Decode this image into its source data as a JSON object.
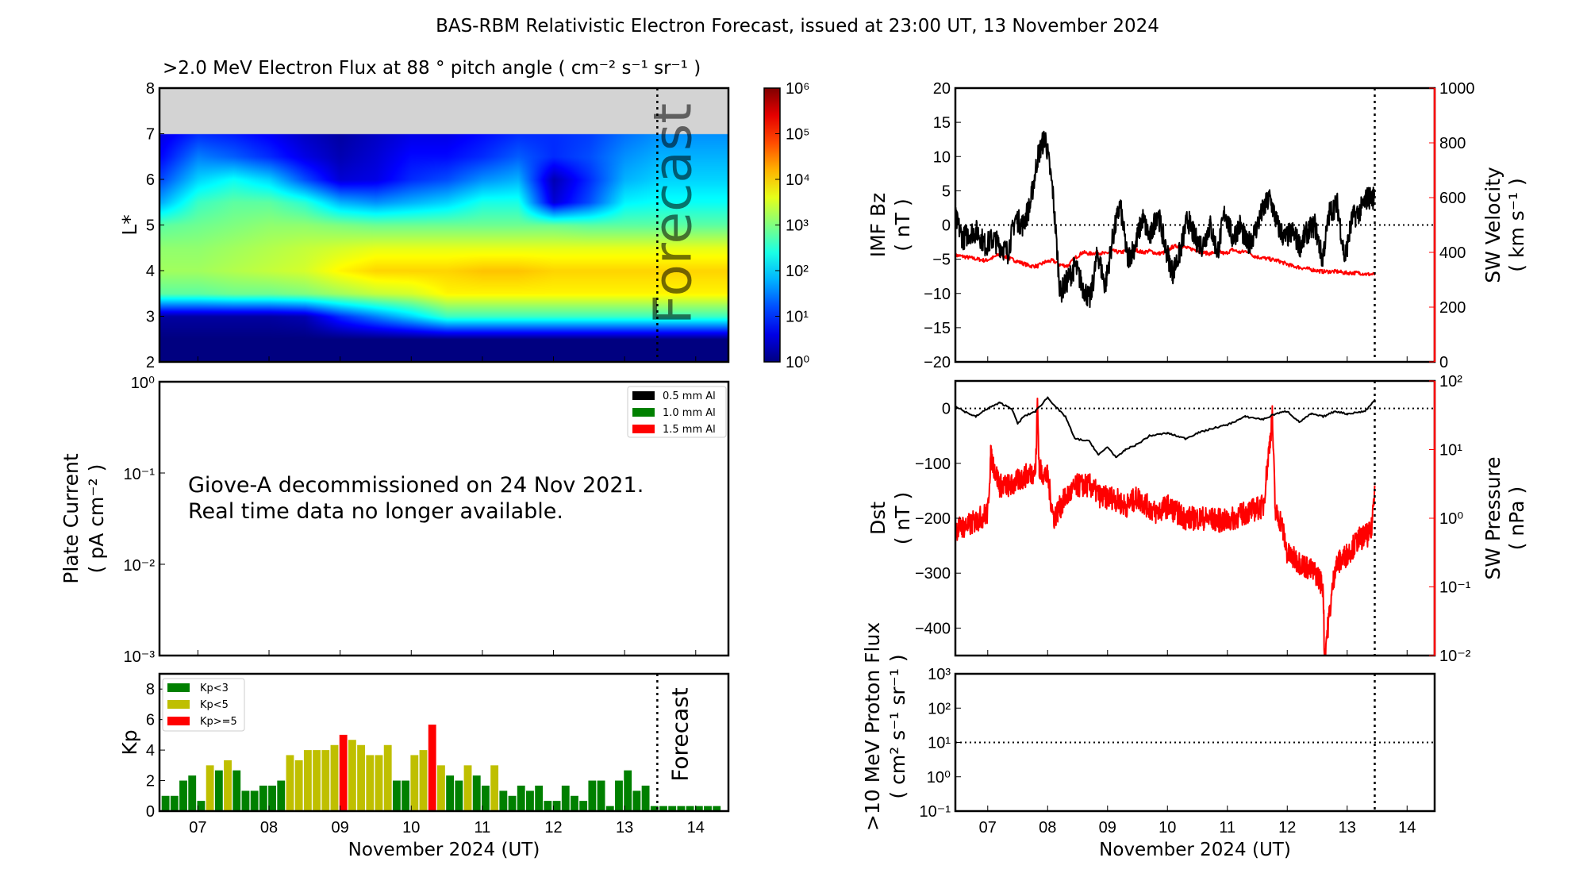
{
  "title": "BAS-RBM Relativistic Electron Forecast, issued at 23:00 UT, 13 November 2024",
  "xaxis": {
    "label": "November 2024 (UT)",
    "xlim": [
      6.46,
      14.46
    ],
    "ticks": [
      7,
      8,
      9,
      10,
      11,
      12,
      13,
      14
    ],
    "tick_labels": [
      "07",
      "08",
      "09",
      "10",
      "11",
      "12",
      "13",
      "14"
    ],
    "forecast_start": 13.46
  },
  "chart_data": [
    {
      "id": "electron-flux",
      "type": "heatmap",
      "title": ">2.0 MeV Electron Flux at 88 ° pitch angle ( cm⁻² s⁻¹ sr⁻¹ )",
      "ylabel": "L*",
      "ylim": [
        2,
        8
      ],
      "yticks": [
        "2",
        "3",
        "4",
        "5",
        "6",
        "7",
        "8"
      ],
      "no_data_color": "#d3d3d3",
      "no_data_above_L": 7,
      "forecast_text": "Forecast",
      "colormap": "jet",
      "colorbar": {
        "log10_range": [
          0,
          6
        ],
        "tick_labels": [
          "10⁰",
          "10¹",
          "10²",
          "10³",
          "10⁴",
          "10⁵",
          "10⁶"
        ]
      },
      "time": [
        6.5,
        7,
        7.5,
        8,
        8.5,
        9,
        9.5,
        10,
        10.5,
        11,
        11.5,
        12,
        12.5,
        13,
        13.5,
        14,
        14.5
      ],
      "L": [
        2,
        2.5,
        3,
        3.5,
        4,
        4.5,
        5,
        5.5,
        6,
        6.5,
        7
      ],
      "log10_flux": [
        [
          0,
          0,
          0,
          0,
          0,
          0,
          0,
          0,
          0,
          0,
          0,
          0,
          0,
          0,
          0,
          0,
          0
        ],
        [
          0,
          0,
          0,
          0,
          0,
          0,
          0,
          0,
          0,
          0,
          0,
          0,
          0,
          0,
          0,
          0,
          0
        ],
        [
          0.2,
          0.2,
          0.2,
          0.2,
          0.3,
          1.0,
          1.5,
          2.0,
          2.6,
          2.6,
          2.6,
          2.6,
          2.6,
          2.6,
          2.6,
          2.6,
          2.6
        ],
        [
          2.8,
          2.8,
          2.9,
          2.9,
          3.0,
          3.2,
          3.4,
          3.5,
          3.8,
          3.8,
          3.8,
          3.8,
          3.8,
          3.8,
          3.8,
          3.8,
          3.8
        ],
        [
          3.2,
          3.2,
          3.3,
          3.4,
          3.5,
          3.8,
          4.0,
          4.0,
          4.0,
          4.1,
          4.1,
          4.0,
          4.0,
          4.0,
          4.0,
          4.0,
          4.0
        ],
        [
          3.1,
          3.1,
          3.2,
          3.3,
          3.4,
          3.5,
          3.6,
          3.6,
          3.6,
          3.6,
          3.6,
          3.6,
          3.6,
          3.6,
          3.6,
          3.6,
          3.6
        ],
        [
          2.8,
          2.9,
          3.0,
          3.1,
          3.1,
          3.0,
          2.9,
          2.9,
          2.9,
          2.9,
          2.9,
          2.9,
          2.8,
          2.8,
          2.8,
          2.8,
          2.8
        ],
        [
          1.8,
          2.6,
          2.8,
          2.8,
          2.5,
          1.8,
          1.6,
          1.8,
          2.0,
          2.4,
          2.4,
          0.5,
          1.2,
          2.2,
          2.3,
          2.3,
          2.3
        ],
        [
          1.2,
          2.0,
          2.3,
          2.0,
          1.2,
          0.5,
          0.6,
          1.0,
          1.2,
          1.6,
          1.8,
          0.3,
          1.0,
          1.8,
          2.0,
          2.0,
          2.0
        ],
        [
          0.8,
          1.5,
          1.3,
          1.0,
          0.6,
          0.3,
          0.5,
          0.8,
          0.8,
          1.0,
          1.3,
          1.0,
          1.2,
          1.6,
          1.8,
          1.8,
          1.8
        ],
        [
          0.6,
          1.0,
          0.9,
          0.7,
          0.4,
          0.2,
          0.4,
          0.6,
          0.6,
          0.8,
          1.0,
          1.0,
          1.1,
          1.4,
          1.6,
          1.6,
          1.6
        ]
      ]
    },
    {
      "id": "plate-current",
      "type": "line",
      "ylabel": "Plate Current",
      "ylabel_units": "( pA cm⁻² )",
      "yscale": "log",
      "ylim": [
        0.001,
        1
      ],
      "yticks": [
        "10⁻³",
        "10⁻²",
        "10⁻¹",
        "10⁰"
      ],
      "legend": [
        {
          "label": "0.5 mm Al",
          "color": "#000000"
        },
        {
          "label": "1.0 mm Al",
          "color": "#008000"
        },
        {
          "label": "1.5 mm Al",
          "color": "#ff0000"
        }
      ],
      "legend_position": "top-right",
      "message": [
        "Giove-A decommissioned on 24 Nov 2021.",
        "Real time data no longer available."
      ],
      "series": []
    },
    {
      "id": "kp",
      "type": "bar",
      "ylabel": "Kp",
      "ylim": [
        0,
        9
      ],
      "yticks": [
        "0",
        "2",
        "4",
        "6",
        "8"
      ],
      "forecast_text": "Forecast",
      "legend": [
        {
          "label": "Kp<3",
          "color": "#008000"
        },
        {
          "label": "Kp<5",
          "color": "#bfbf00"
        },
        {
          "label": "Kp>=5",
          "color": "#ff0000"
        }
      ],
      "legend_position": "top-left",
      "observed": [
        1,
        1,
        2,
        2.33,
        0.67,
        3,
        2.67,
        3.33,
        2.67,
        1.33,
        1.33,
        1.67,
        1.67,
        2,
        3.67,
        3.33,
        4,
        4,
        4,
        4.33,
        5,
        4.67,
        4.33,
        3.67,
        3.67,
        4.33,
        2,
        2,
        3.67,
        4,
        5.67,
        3,
        2.33,
        2,
        3,
        2.33,
        1.67,
        3,
        1.33,
        1,
        1.67,
        1.33,
        1.67,
        0.67,
        0.67,
        1.67,
        1,
        0.67,
        2,
        2,
        0.33,
        2,
        2.67,
        1.33,
        1.67
      ],
      "forecast": [
        0.33,
        0.33,
        0.33,
        0.33,
        0.33,
        0.33,
        0.33,
        0.33
      ]
    },
    {
      "id": "imf-sw-velocity",
      "type": "line",
      "ylabel": "IMF Bz",
      "ylabel_units": "( nT )",
      "ylim": [
        -20,
        20
      ],
      "yticks": [
        "−20",
        "−15",
        "−10",
        "−5",
        "0",
        "5",
        "10",
        "15",
        "20"
      ],
      "y2label": "SW Velocity",
      "y2label_units": "( km s⁻¹ )",
      "y2lim": [
        0,
        1000
      ],
      "y2ticks": [
        "0",
        "200",
        "400",
        "600",
        "800",
        "1000"
      ],
      "x": [
        6.46,
        6.585,
        6.71,
        6.835,
        6.96,
        7.085,
        7.21,
        7.335,
        7.46,
        7.585,
        7.71,
        7.835,
        7.96,
        8.085,
        8.21,
        8.335,
        8.46,
        8.585,
        8.71,
        8.835,
        8.96,
        9.085,
        9.21,
        9.335,
        9.46,
        9.585,
        9.71,
        9.835,
        9.96,
        10.085,
        10.21,
        10.335,
        10.46,
        10.585,
        10.71,
        10.835,
        10.96,
        11.085,
        11.21,
        11.335,
        11.46,
        11.585,
        11.71,
        11.835,
        11.96,
        12.085,
        12.21,
        12.335,
        12.46,
        12.585,
        12.71,
        12.835,
        12.96,
        13.085,
        13.21,
        13.335,
        13.46
      ],
      "bz": [
        1,
        -2,
        -1,
        -1,
        -3,
        -2,
        -3,
        -4,
        1,
        0,
        3,
        10,
        13,
        5,
        -10,
        -8,
        -6,
        -9,
        -11,
        -4,
        -9,
        -2,
        3,
        -5,
        -3,
        1,
        -2,
        2,
        -3,
        -7,
        -4,
        1,
        -2,
        -3,
        0,
        -4,
        2,
        -2,
        0,
        -3,
        -1,
        2,
        4,
        0,
        -2,
        -1,
        -3,
        -1,
        0,
        -5,
        2,
        3,
        -5,
        1,
        2,
        4,
        4
      ],
      "velocity": [
        390,
        385,
        380,
        375,
        370,
        380,
        395,
        380,
        370,
        360,
        350,
        350,
        365,
        370,
        355,
        350,
        380,
        400,
        395,
        400,
        395,
        405,
        400,
        405,
        410,
        400,
        405,
        395,
        400,
        420,
        425,
        415,
        410,
        400,
        395,
        405,
        395,
        410,
        400,
        405,
        385,
        380,
        375,
        370,
        360,
        350,
        345,
        340,
        335,
        330,
        330,
        330,
        325,
        325,
        325,
        320,
        320
      ],
      "bz_color": "#000000",
      "velocity_color": "#ff0000"
    },
    {
      "id": "dst-sw-pressure",
      "type": "line",
      "ylabel": "Dst",
      "ylabel_units": "( nT )",
      "ylim": [
        -450,
        50
      ],
      "yticks": [
        "−400",
        "−300",
        "−200",
        "−100",
        "0"
      ],
      "y2label": "SW Pressure",
      "y2label_units": "( nPa )",
      "y2scale": "log",
      "y2lim": [
        0.01,
        100
      ],
      "y2ticks": [
        "10⁻²",
        "10⁻¹",
        "10⁰",
        "10¹",
        "10²"
      ],
      "dst_x": [
        6.46,
        6.6,
        6.8,
        7.0,
        7.2,
        7.4,
        7.5,
        7.6,
        7.8,
        8.0,
        8.2,
        8.3,
        8.45,
        8.7,
        8.85,
        9.0,
        9.15,
        9.3,
        9.5,
        9.7,
        10.0,
        10.3,
        10.5,
        10.8,
        11.0,
        11.3,
        11.6,
        11.8,
        12.0,
        12.2,
        12.4,
        12.6,
        12.8,
        13.0,
        13.3,
        13.46
      ],
      "dst": [
        5,
        -5,
        -15,
        0,
        10,
        0,
        -28,
        -15,
        -5,
        20,
        -5,
        -15,
        -55,
        -60,
        -85,
        -70,
        -90,
        -75,
        -65,
        -50,
        -45,
        -55,
        -45,
        -35,
        -30,
        -15,
        -20,
        -10,
        -5,
        -25,
        -10,
        -15,
        -5,
        -10,
        -5,
        15
      ],
      "pressure_x": [
        6.46,
        6.7,
        7.0,
        7.05,
        7.2,
        7.4,
        7.6,
        7.8,
        7.83,
        7.86,
        8.0,
        8.1,
        8.3,
        8.5,
        8.7,
        8.9,
        9.1,
        9.3,
        9.5,
        9.8,
        10.0,
        10.3,
        10.6,
        11.0,
        11.3,
        11.6,
        11.75,
        11.8,
        11.9,
        12.0,
        12.3,
        12.5,
        12.6,
        12.62,
        12.8,
        13.0,
        13.2,
        13.4,
        13.46
      ],
      "pressure": [
        0.7,
        0.8,
        1.2,
        8,
        3,
        3,
        4,
        5,
        50,
        5,
        4,
        1,
        2,
        3,
        3,
        2,
        2,
        1.5,
        2,
        1.2,
        1.5,
        1,
        1,
        0.9,
        1.2,
        1.5,
        30,
        1.2,
        0.9,
        0.3,
        0.2,
        0.15,
        0.1,
        0.01,
        0.2,
        0.3,
        0.5,
        0.6,
        3
      ],
      "dst_color": "#000000",
      "pressure_color": "#ff0000"
    },
    {
      "id": "proton-flux",
      "type": "line",
      "ylabel": ">10 MeV Proton Flux",
      "ylabel_units": "( cm² s⁻¹ sr⁻¹ )",
      "yscale": "log",
      "ylim": [
        0.1,
        1000
      ],
      "yticks": [
        "10⁻¹",
        "10⁰",
        "10¹",
        "10²",
        "10³"
      ],
      "threshold": 10,
      "series": []
    }
  ]
}
